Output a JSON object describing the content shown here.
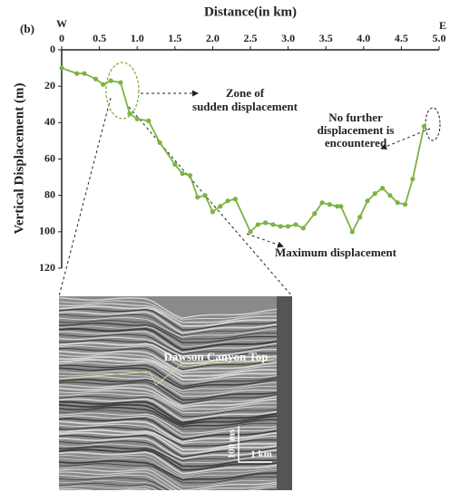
{
  "chart_data": {
    "type": "line",
    "title": "Distance(in km)",
    "panel_label": "(b)",
    "x_end_labels": [
      "W",
      "E"
    ],
    "y_label": "Vertical Displacement (m)",
    "x": [
      0,
      0.2,
      0.3,
      0.45,
      0.55,
      0.65,
      0.78,
      0.9,
      1.0,
      1.15,
      1.3,
      1.5,
      1.6,
      1.7,
      1.8,
      1.9,
      2.0,
      2.1,
      2.2,
      2.3,
      2.5,
      2.6,
      2.7,
      2.8,
      2.9,
      3.0,
      3.1,
      3.2,
      3.35,
      3.45,
      3.55,
      3.65,
      3.7,
      3.85,
      3.95,
      4.05,
      4.15,
      4.25,
      4.35,
      4.45,
      4.55,
      4.65,
      4.8
    ],
    "series": [
      {
        "color": "#7cb342",
        "values": [
          10,
          13,
          13,
          16,
          19,
          17,
          18,
          35,
          38,
          39,
          51,
          63,
          68,
          69,
          81,
          80,
          89,
          86,
          83,
          82,
          100,
          96,
          95,
          96,
          97,
          97,
          96,
          98,
          90,
          84,
          85,
          86,
          86,
          100,
          92,
          83,
          79,
          76,
          80,
          84,
          85,
          71,
          42
        ]
      }
    ],
    "xlim": [
      0,
      5
    ],
    "ylim": [
      120,
      0
    ],
    "xticks": [
      0,
      0.5,
      {
        "value": 1,
        "label": "1.0"
      },
      1.5,
      {
        "value": 2,
        "label": "2.0"
      },
      2.5,
      {
        "value": 3,
        "label": "3.0"
      },
      3.5,
      {
        "value": 4,
        "label": "4.0"
      },
      4.5,
      {
        "value": 5,
        "label": "5.0"
      }
    ],
    "yticks": [
      0,
      20,
      40,
      60,
      80,
      100,
      120
    ],
    "annotations": [
      {
        "lines": [
          "Zone of",
          "sudden displacement"
        ]
      },
      {
        "lines": [
          "No further",
          "displacement is",
          "encountered"
        ]
      },
      {
        "lines": [
          "Maximum displacement"
        ]
      }
    ]
  },
  "seismic_section": {
    "horizon_label": "Dawson Canyon Top",
    "time_scale": "100 ms",
    "distance_scale": "1 km"
  }
}
